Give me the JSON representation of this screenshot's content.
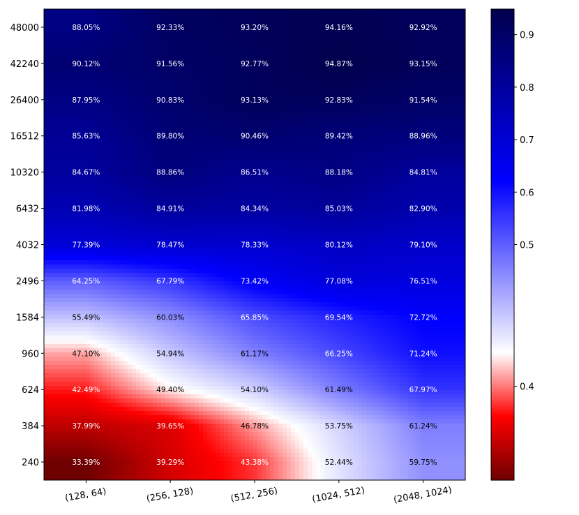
{
  "chart_data": {
    "type": "heatmap",
    "title": "",
    "xlabel": "",
    "ylabel": "",
    "x_categories": [
      "(128, 64)",
      "(256, 128)",
      "(512, 256)",
      "(1024, 512)",
      "(2048, 1024)"
    ],
    "y_categories": [
      "240",
      "384",
      "624",
      "960",
      "1584",
      "2496",
      "4032",
      "6432",
      "10320",
      "16512",
      "26400",
      "42240",
      "48000"
    ],
    "values": [
      [
        0.3339,
        0.3929,
        0.4338,
        0.5244,
        0.5975
      ],
      [
        0.3799,
        0.3965,
        0.4678,
        0.5375,
        0.6124
      ],
      [
        0.4249,
        0.494,
        0.541,
        0.6149,
        0.6797
      ],
      [
        0.471,
        0.5494,
        0.6117,
        0.6625,
        0.7124
      ],
      [
        0.5549,
        0.6003,
        0.6585,
        0.6954,
        0.7272
      ],
      [
        0.6425,
        0.6779,
        0.7342,
        0.7708,
        0.7651
      ],
      [
        0.7739,
        0.7847,
        0.7833,
        0.8012,
        0.791
      ],
      [
        0.8198,
        0.8491,
        0.8434,
        0.8503,
        0.829
      ],
      [
        0.8467,
        0.8886,
        0.8651,
        0.8818,
        0.8481
      ],
      [
        0.8563,
        0.898,
        0.9046,
        0.8942,
        0.8896
      ],
      [
        0.8795,
        0.9083,
        0.9313,
        0.9283,
        0.9154
      ],
      [
        0.9012,
        0.9156,
        0.9277,
        0.9487,
        0.9315
      ],
      [
        0.8805,
        0.9233,
        0.932,
        0.9416,
        0.9292
      ]
    ],
    "labels": [
      [
        "33.39%",
        "39.29%",
        "43.38%",
        "52.44%",
        "59.75%"
      ],
      [
        "37.99%",
        "39.65%",
        "46.78%",
        "53.75%",
        "61.24%"
      ],
      [
        "42.49%",
        "49.40%",
        "54.10%",
        "61.49%",
        "67.97%"
      ],
      [
        "47.10%",
        "54.94%",
        "61.17%",
        "66.25%",
        "71.24%"
      ],
      [
        "55.49%",
        "60.03%",
        "65.85%",
        "69.54%",
        "72.72%"
      ],
      [
        "64.25%",
        "67.79%",
        "73.42%",
        "77.08%",
        "76.51%"
      ],
      [
        "77.39%",
        "78.47%",
        "78.33%",
        "80.12%",
        "79.10%"
      ],
      [
        "81.98%",
        "84.91%",
        "84.34%",
        "85.03%",
        "82.90%"
      ],
      [
        "84.67%",
        "88.86%",
        "86.51%",
        "88.18%",
        "84.81%"
      ],
      [
        "85.63%",
        "89.80%",
        "90.46%",
        "89.42%",
        "88.96%"
      ],
      [
        "87.95%",
        "90.83%",
        "93.13%",
        "92.83%",
        "91.54%"
      ],
      [
        "90.12%",
        "91.56%",
        "92.77%",
        "94.87%",
        "93.15%"
      ],
      [
        "88.05%",
        "92.33%",
        "93.20%",
        "94.16%",
        "92.92%"
      ]
    ],
    "colormap": "seismic_r",
    "colorbar": {
      "ticks": [
        0.4,
        0.5,
        0.6,
        0.7,
        0.8,
        0.9
      ],
      "tick_labels": [
        "0.4",
        "0.5",
        "0.6",
        "0.7",
        "0.8",
        "0.9"
      ],
      "range": [
        0.3339,
        0.9487
      ],
      "center": 0.5
    },
    "grid": false,
    "legend": "none"
  }
}
